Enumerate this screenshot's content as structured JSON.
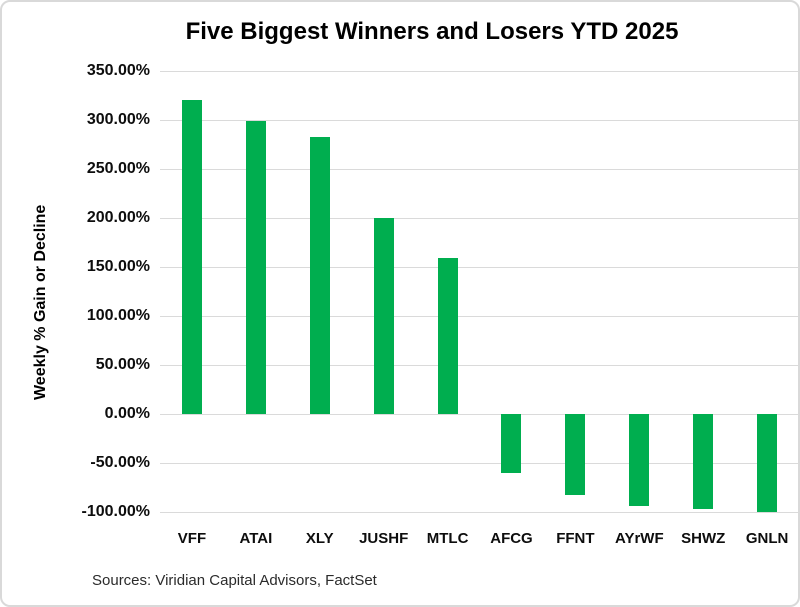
{
  "page": {
    "background_color": "#ffffff",
    "frame_border_color": "#d9d9d9"
  },
  "chart_data": {
    "type": "bar",
    "title": "Five Biggest Winners and Losers YTD 2025",
    "xlabel": "",
    "ylabel": "Weekly % Gain or Decline",
    "source_note": "Sources: Viridian Capital Advisors, FactSet",
    "categories": [
      "VFF",
      "ATAI",
      "XLY",
      "JUSHF",
      "MTLC",
      "AFCG",
      "FFNT",
      "AYrWF",
      "SHWZ",
      "GNLN"
    ],
    "values": [
      320,
      299,
      283,
      200,
      159,
      -60,
      -83,
      -94,
      -97,
      -100
    ],
    "unit": "%",
    "ylim": [
      -100,
      350
    ],
    "yticks": [
      {
        "value": 350,
        "label": "350.00%"
      },
      {
        "value": 300,
        "label": "300.00%"
      },
      {
        "value": 250,
        "label": "250.00%"
      },
      {
        "value": 200,
        "label": "200.00%"
      },
      {
        "value": 150,
        "label": "150.00%"
      },
      {
        "value": 100,
        "label": "100.00%"
      },
      {
        "value": 50,
        "label": "50.00%"
      },
      {
        "value": 0,
        "label": "0.00%"
      },
      {
        "value": -50,
        "label": "-50.00%"
      },
      {
        "value": -100,
        "label": "-100.00%"
      }
    ],
    "grid": true,
    "legend": false,
    "bar_color": "#00ae4f",
    "gridline_color": "#dadada",
    "text_color": "#000000"
  }
}
